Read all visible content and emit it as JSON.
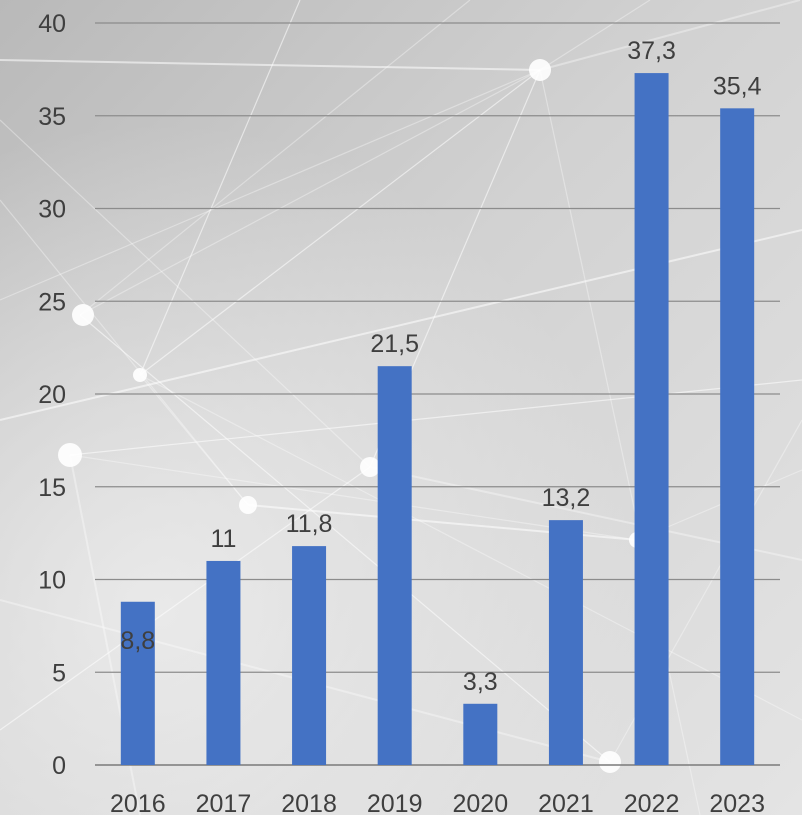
{
  "chart_data": {
    "type": "bar",
    "categories": [
      "2016",
      "2017",
      "2018",
      "2019",
      "2020",
      "2021",
      "2022",
      "2023"
    ],
    "values": [
      8.8,
      11,
      11.8,
      21.5,
      3.3,
      13.2,
      37.3,
      35.4
    ],
    "data_labels": [
      "8,8",
      "11",
      "11,8",
      "21,5",
      "3,3",
      "13,2",
      "37,3",
      "35,4"
    ],
    "ylim": [
      0,
      40
    ],
    "yticks": [
      "0",
      "5",
      "10",
      "15",
      "20",
      "25",
      "30",
      "35",
      "40"
    ],
    "grid": true,
    "legend": "none",
    "bar_color": "#4472C4",
    "title": "",
    "xlabel": "",
    "ylabel": ""
  }
}
